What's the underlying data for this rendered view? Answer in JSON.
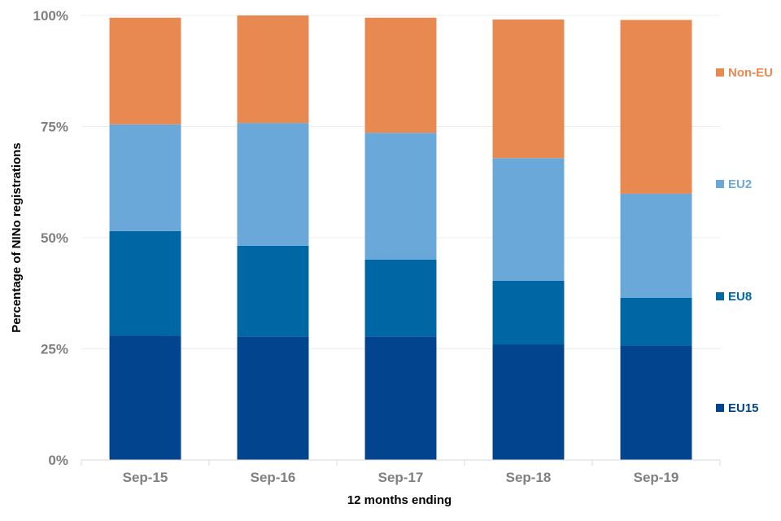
{
  "chart_data": {
    "type": "bar",
    "stacked": true,
    "title": "",
    "xlabel": "12 months ending",
    "ylabel": "Percentage of NINo registrations",
    "ylim": [
      0,
      100
    ],
    "yticks": [
      0,
      25,
      50,
      75,
      100
    ],
    "ytick_labels": [
      "0%",
      "25%",
      "50%",
      "75%",
      "100%"
    ],
    "categories": [
      "Sep-15",
      "Sep-16",
      "Sep-17",
      "Sep-18",
      "Sep-19"
    ],
    "series": [
      {
        "name": "EU15",
        "color": "#03448f",
        "values": [
          28,
          27.8,
          27.8,
          26,
          25.8
        ]
      },
      {
        "name": "EU8",
        "color": "#0067a5",
        "values": [
          23.5,
          20.4,
          17.3,
          14.3,
          10.7
        ]
      },
      {
        "name": "EU2",
        "color": "#6aa8d9",
        "values": [
          24,
          27.6,
          28.5,
          27.6,
          23.4
        ]
      },
      {
        "name": "Non-EU",
        "color": "#e98952",
        "values": [
          24,
          24.2,
          25.9,
          31.2,
          39.1
        ]
      }
    ],
    "legend_position": "right",
    "grid": true
  }
}
